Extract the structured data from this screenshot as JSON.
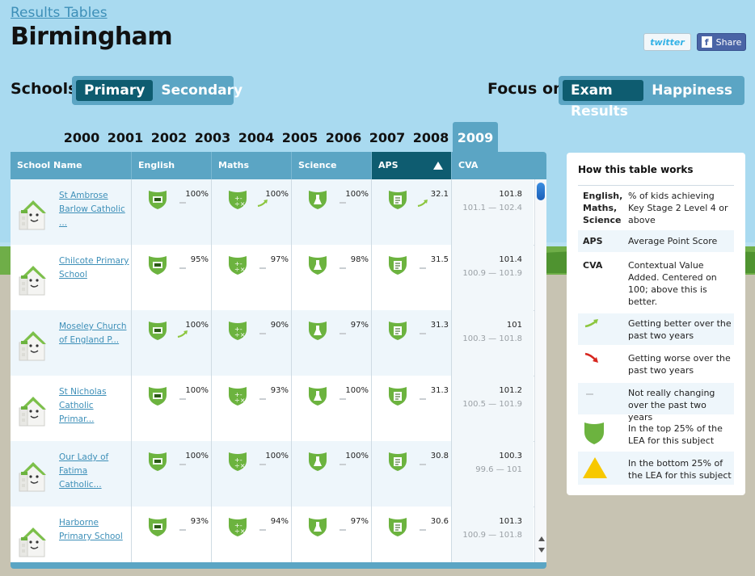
{
  "header": {
    "results_link": "Results Tables",
    "city": "Birmingham",
    "twitter_label": "twitter",
    "facebook_f": "f",
    "facebook_label": "Share"
  },
  "schools_toggle": {
    "label": "Schools",
    "options": [
      "Primary",
      "Secondary"
    ],
    "selected": "Primary"
  },
  "focus_toggle": {
    "label": "Focus on",
    "options": [
      "Exam Results",
      "Happiness"
    ],
    "selected": "Exam Results"
  },
  "years": [
    "2000",
    "2001",
    "2002",
    "2003",
    "2004",
    "2005",
    "2006",
    "2007",
    "2008",
    "2009"
  ],
  "selected_year": "2009",
  "table": {
    "columns": [
      "School Name",
      "English",
      "Maths",
      "Science",
      "APS",
      "CVA"
    ],
    "sorted_column": "APS",
    "rows": [
      {
        "name": "St Ambrose Barlow Catholic ...",
        "english": "100%",
        "english_trend": "flat",
        "maths": "100%",
        "maths_trend": "up",
        "science": "100%",
        "science_trend": "flat",
        "aps": "32.1",
        "aps_trend": "up",
        "cva": "101.8",
        "cva_range": "101.1 — 102.4"
      },
      {
        "name": "Chilcote Primary School",
        "english": "95%",
        "english_trend": "flat",
        "maths": "97%",
        "maths_trend": "flat",
        "science": "98%",
        "science_trend": "flat",
        "aps": "31.5",
        "aps_trend": "flat",
        "cva": "101.4",
        "cva_range": "100.9 — 101.9"
      },
      {
        "name": "Moseley Church of England P...",
        "english": "100%",
        "english_trend": "up",
        "maths": "90%",
        "maths_trend": "flat",
        "science": "97%",
        "science_trend": "flat",
        "aps": "31.3",
        "aps_trend": "flat",
        "cva": "101",
        "cva_range": "100.3 — 101.8"
      },
      {
        "name": "St Nicholas Catholic Primar...",
        "english": "100%",
        "english_trend": "flat",
        "maths": "93%",
        "maths_trend": "flat",
        "science": "100%",
        "science_trend": "flat",
        "aps": "31.3",
        "aps_trend": "flat",
        "cva": "101.2",
        "cva_range": "100.5 — 101.9"
      },
      {
        "name": "Our Lady of Fatima Catholic...",
        "english": "100%",
        "english_trend": "flat",
        "maths": "100%",
        "maths_trend": "flat",
        "science": "100%",
        "science_trend": "flat",
        "aps": "30.8",
        "aps_trend": "flat",
        "cva": "100.3",
        "cva_range": "99.6 — 101"
      },
      {
        "name": "Harborne Primary School",
        "english": "93%",
        "english_trend": "flat",
        "maths": "94%",
        "maths_trend": "flat",
        "science": "97%",
        "science_trend": "flat",
        "aps": "30.6",
        "aps_trend": "flat",
        "cva": "101.3",
        "cva_range": "100.9 — 101.8"
      }
    ]
  },
  "legend": {
    "title": "How this table works",
    "items": [
      {
        "key": "English, Maths, Science",
        "desc": "% of kids achieving Key Stage 2 Level 4 or above"
      },
      {
        "key": "APS",
        "desc": "Average Point Score"
      },
      {
        "key": "CVA",
        "desc": "Contextual Value Added. Centered on 100; above this is better."
      },
      {
        "icon": "trend-up-icon",
        "desc": "Getting better over the past two years"
      },
      {
        "icon": "trend-down-icon",
        "desc": "Getting worse over the past two years"
      },
      {
        "icon": "trend-flat-icon",
        "desc": "Not really changing over the past two years"
      },
      {
        "icon": "green-shield-icon",
        "desc": "In the top 25% of the LEA for this subject"
      },
      {
        "icon": "yellow-triangle-icon",
        "desc": "In the bottom 25% of the LEA for this subject"
      }
    ]
  },
  "colors": {
    "sky": "#a9daf0",
    "accent_blue": "#5ba5c4",
    "active_dark": "#0e5c70",
    "shield_green": "#6cb33f",
    "trend_up": "#8cc63f",
    "trend_down": "#d7261e",
    "warning_yellow": "#f7c800"
  }
}
